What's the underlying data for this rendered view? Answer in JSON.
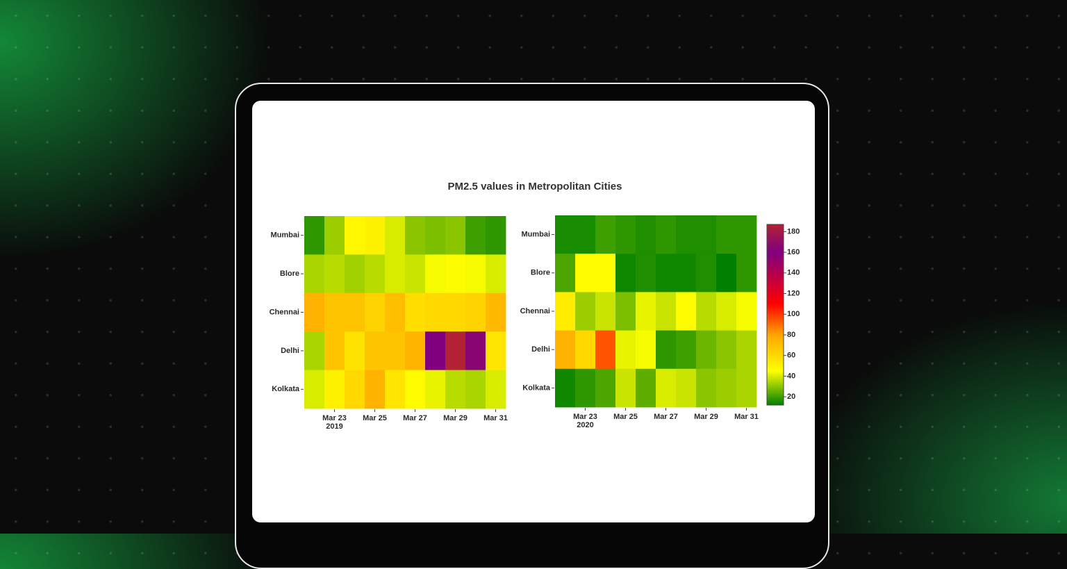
{
  "chart_data": {
    "type": "heatmap",
    "title": "PM2.5 values in Metropolitan Cities",
    "colorscale": [
      [
        12,
        "#008000"
      ],
      [
        45,
        "#ffff00"
      ],
      [
        80,
        "#ffa500"
      ],
      [
        110,
        "#ff0000"
      ],
      [
        160,
        "#800080"
      ],
      [
        187,
        "#b22234"
      ]
    ],
    "zlim": [
      12,
      187
    ],
    "colorbar_ticks": [
      20,
      40,
      60,
      80,
      100,
      120,
      140,
      160,
      180
    ],
    "subplots": [
      {
        "x": [
          "2019-03-22",
          "2019-03-23",
          "2019-03-24",
          "2019-03-25",
          "2019-03-26",
          "2019-03-27",
          "2019-03-28",
          "2019-03-29",
          "2019-03-30",
          "2019-03-31"
        ],
        "xticks": [
          {
            "value": "2019-03-23",
            "label": "Mar 23"
          },
          {
            "value": "2019-03-25",
            "label": "Mar 25"
          },
          {
            "value": "2019-03-27",
            "label": "Mar 27"
          },
          {
            "value": "2019-03-29",
            "label": "Mar 29"
          },
          {
            "value": "2019-03-31",
            "label": "Mar 31"
          }
        ],
        "x_year": "2019",
        "y": [
          "Mumbai",
          "Blore",
          "Chennai",
          "Delhi",
          "Kolkata"
        ],
        "z": [
          [
            18,
            32,
            48,
            50,
            40,
            30,
            28,
            30,
            20,
            18
          ],
          [
            34,
            36,
            33,
            36,
            40,
            38,
            44,
            46,
            44,
            40
          ],
          [
            75,
            68,
            68,
            62,
            70,
            58,
            60,
            60,
            62,
            72
          ],
          [
            34,
            68,
            56,
            68,
            68,
            74,
            160,
            187,
            165,
            55
          ],
          [
            40,
            50,
            60,
            75,
            55,
            46,
            42,
            36,
            34,
            40
          ]
        ]
      },
      {
        "x": [
          "2020-03-22",
          "2020-03-23",
          "2020-03-24",
          "2020-03-25",
          "2020-03-26",
          "2020-03-27",
          "2020-03-28",
          "2020-03-29",
          "2020-03-30",
          "2020-03-31"
        ],
        "xticks": [
          {
            "value": "2020-03-23",
            "label": "Mar 23"
          },
          {
            "value": "2020-03-25",
            "label": "Mar 25"
          },
          {
            "value": "2020-03-27",
            "label": "Mar 27"
          },
          {
            "value": "2020-03-29",
            "label": "Mar 29"
          },
          {
            "value": "2020-03-31",
            "label": "Mar 31"
          }
        ],
        "x_year": "2020",
        "y": [
          "Mumbai",
          "Blore",
          "Chennai",
          "Delhi",
          "Kolkata"
        ],
        "z": [
          [
            15,
            15,
            20,
            18,
            16,
            18,
            16,
            16,
            18,
            18
          ],
          [
            22,
            46,
            46,
            14,
            16,
            14,
            14,
            16,
            12,
            18
          ],
          [
            52,
            32,
            38,
            28,
            42,
            38,
            46,
            36,
            40,
            44
          ],
          [
            75,
            60,
            95,
            42,
            44,
            18,
            20,
            26,
            30,
            34
          ],
          [
            14,
            18,
            22,
            38,
            24,
            40,
            38,
            30,
            32,
            34
          ]
        ]
      }
    ]
  }
}
